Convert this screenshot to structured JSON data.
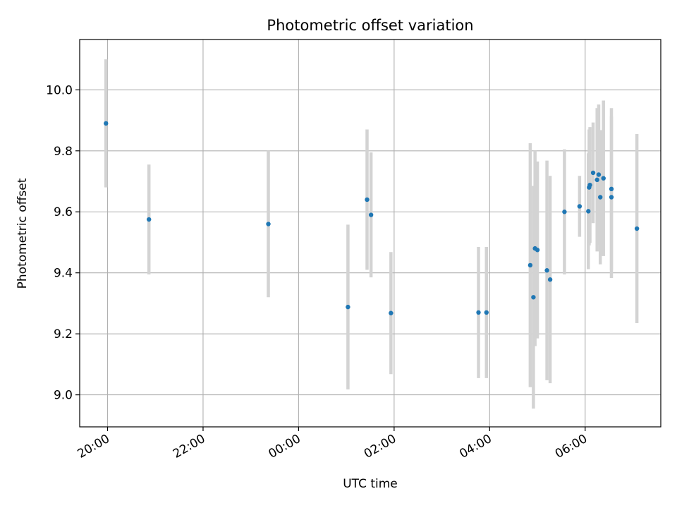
{
  "chart_data": {
    "type": "scatter",
    "title": "Photometric offset variation",
    "xlabel": "UTC time",
    "ylabel": "Photometric offset",
    "x_axis_kind": "time",
    "xlim": [
      "19:25",
      "07:35"
    ],
    "ylim": [
      8.895,
      10.165
    ],
    "x_ticks": [
      "20:00",
      "22:00",
      "00:00",
      "02:00",
      "04:00",
      "06:00"
    ],
    "y_ticks": [
      "9.0",
      "9.2",
      "9.4",
      "9.6",
      "9.8",
      "10.0"
    ],
    "grid": true,
    "colors": {
      "points": "#1f77b4",
      "errorbars": "#d3d3d3"
    },
    "series": [
      {
        "points": [
          {
            "x": "19:58",
            "y": 9.89,
            "yerr": 0.21
          },
          {
            "x": "20:52",
            "y": 9.575,
            "yerr": 0.18
          },
          {
            "x": "23:22",
            "y": 9.56,
            "yerr": 0.24
          },
          {
            "x": "01:02",
            "y": 9.288,
            "yerr": 0.27
          },
          {
            "x": "01:26",
            "y": 9.64,
            "yerr": 0.23
          },
          {
            "x": "01:31",
            "y": 9.59,
            "yerr": 0.205
          },
          {
            "x": "01:56",
            "y": 9.268,
            "yerr": 0.2
          },
          {
            "x": "03:46",
            "y": 9.27,
            "yerr": 0.215
          },
          {
            "x": "03:56",
            "y": 9.27,
            "yerr": 0.215
          },
          {
            "x": "04:51",
            "y": 9.425,
            "yerr": 0.4
          },
          {
            "x": "04:55",
            "y": 9.32,
            "yerr": 0.365
          },
          {
            "x": "04:57",
            "y": 9.48,
            "yerr": 0.32
          },
          {
            "x": "05:00",
            "y": 9.475,
            "yerr": 0.29
          },
          {
            "x": "05:12",
            "y": 9.408,
            "yerr": 0.36
          },
          {
            "x": "05:16",
            "y": 9.378,
            "yerr": 0.34
          },
          {
            "x": "05:34",
            "y": 9.6,
            "yerr": 0.205
          },
          {
            "x": "05:53",
            "y": 9.618,
            "yerr": 0.1
          },
          {
            "x": "06:04",
            "y": 9.602,
            "yerr": 0.19
          },
          {
            "x": "06:05",
            "y": 9.68,
            "yerr": 0.19
          },
          {
            "x": "06:06",
            "y": 9.688,
            "yerr": 0.19
          },
          {
            "x": "06:10",
            "y": 9.728,
            "yerr": 0.165
          },
          {
            "x": "06:15",
            "y": 9.705,
            "yerr": 0.235
          },
          {
            "x": "06:17",
            "y": 9.722,
            "yerr": 0.23
          },
          {
            "x": "06:19",
            "y": 9.648,
            "yerr": 0.22
          },
          {
            "x": "06:23",
            "y": 9.71,
            "yerr": 0.255
          },
          {
            "x": "06:33",
            "y": 9.648,
            "yerr": 0.265
          },
          {
            "x": "06:33",
            "y": 9.675,
            "yerr": 0.265
          },
          {
            "x": "07:05",
            "y": 9.545,
            "yerr": 0.31
          }
        ]
      }
    ]
  }
}
